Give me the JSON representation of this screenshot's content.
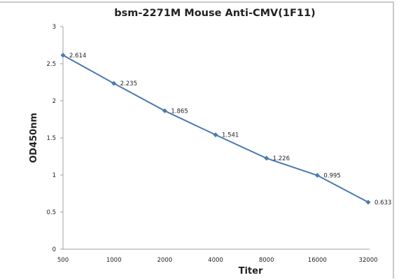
{
  "chart_data": {
    "type": "line",
    "title": "bsm-2271M Mouse Anti-CMV(1F11)",
    "xlabel": "Titer",
    "ylabel": "OD450nm",
    "categories": [
      "500",
      "1000",
      "2000",
      "4000",
      "8000",
      "16000",
      "32000"
    ],
    "series": [
      {
        "name": "OD450nm",
        "values": [
          2.614,
          2.235,
          1.865,
          1.541,
          1.226,
          0.995,
          0.633
        ],
        "labels": [
          "2.614",
          "2.235",
          "1.865",
          "1.541",
          "1.226",
          "0.995",
          "0.633"
        ]
      }
    ],
    "ylim": [
      0,
      3
    ],
    "yticks": [
      "0",
      "0.5",
      "1",
      "1.5",
      "2",
      "2.5",
      "3"
    ],
    "grid": false,
    "legend": "none",
    "colors": {
      "line": "#4a7ab0",
      "marker": "#4a7ab0",
      "axis": "#a0a0a0"
    }
  }
}
